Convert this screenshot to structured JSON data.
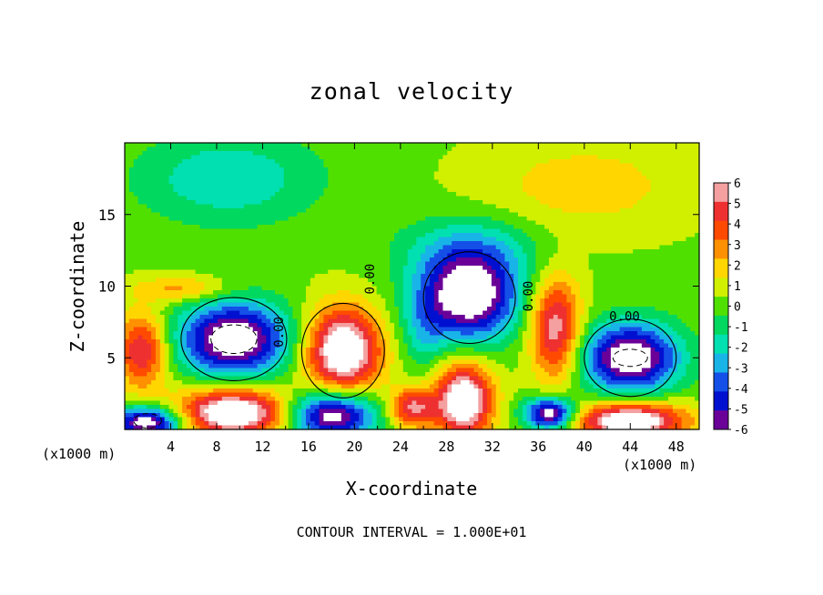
{
  "chart_data": {
    "type": "heatmap",
    "title": "zonal velocity",
    "xlabel": "X-coordinate",
    "ylabel": "Z-coordinate",
    "x_unit_label_left": "(x1000 m)",
    "x_unit_label_right": "(x1000 m)",
    "footer": "CONTOUR INTERVAL = 1.000E+01",
    "xlim": [
      0,
      50
    ],
    "ylim": [
      0,
      20
    ],
    "x_ticks": [
      4,
      8,
      12,
      16,
      20,
      24,
      28,
      32,
      36,
      40,
      44,
      48
    ],
    "y_ticks": [
      5,
      10,
      15
    ],
    "colorbar": {
      "min": -6,
      "max": 6,
      "labels": [
        "6",
        "5",
        "4",
        "3",
        "2",
        "1",
        "0",
        "-1",
        "-2",
        "-3",
        "-4",
        "-5",
        "-6"
      ],
      "colors": [
        "#f4a0a0",
        "#ee3030",
        "#ff4a00",
        "#ff9000",
        "#ffd600",
        "#d0f000",
        "#50e000",
        "#00d860",
        "#00e0b0",
        "#18b4e8",
        "#1450e8",
        "#0010d0",
        "#6a0098"
      ]
    },
    "contour_labels": [
      "0.00",
      "0.00",
      "0.00",
      "0.00"
    ],
    "background_value": 0.3,
    "features": [
      {
        "x": 9.5,
        "z": 6.3,
        "rx": 4.8,
        "rz": 2.6,
        "value": -6
      },
      {
        "x": 30,
        "z": 9.2,
        "rx": 4.2,
        "rz": 3.0,
        "value": -6
      },
      {
        "x": 44,
        "z": 5.0,
        "rx": 4.2,
        "rz": 2.4,
        "value": -6
      },
      {
        "x": 18,
        "z": 1.0,
        "rx": 3.8,
        "rz": 1.7,
        "value": -6
      },
      {
        "x": 2,
        "z": 0.5,
        "rx": 3.0,
        "rz": 1.1,
        "value": -6
      },
      {
        "x": 37,
        "z": 1.1,
        "rx": 2.2,
        "rz": 1.1,
        "value": -6
      },
      {
        "x": 19,
        "z": 5.5,
        "rx": 3.3,
        "rz": 3.0,
        "value": 6
      },
      {
        "x": 9.5,
        "z": 1.2,
        "rx": 5.0,
        "rz": 1.7,
        "value": 6
      },
      {
        "x": 29.5,
        "z": 2.0,
        "rx": 2.5,
        "rz": 2.6,
        "value": 6
      },
      {
        "x": 44,
        "z": 0.6,
        "rx": 4.8,
        "rz": 1.3,
        "value": 6
      },
      {
        "x": 1.5,
        "z": 5.5,
        "rx": 2.2,
        "rz": 2.6,
        "value": 4
      },
      {
        "x": 37.5,
        "z": 7.0,
        "rx": 2.2,
        "rz": 3.6,
        "value": 4.5
      },
      {
        "x": 25,
        "z": 1.5,
        "rx": 2.0,
        "rz": 1.4,
        "value": 4
      },
      {
        "x": 9,
        "z": 17.5,
        "rx": 8.0,
        "rz": 3.2,
        "value": -2
      },
      {
        "x": 26,
        "z": 7.0,
        "rx": 2.0,
        "rz": 3.0,
        "value": -1.5
      },
      {
        "x": 30,
        "z": 12.5,
        "rx": 6.0,
        "rz": 2.4,
        "value": -2
      },
      {
        "x": 40,
        "z": 17,
        "rx": 9.0,
        "rz": 3.2,
        "value": 1.3
      },
      {
        "x": 5,
        "z": 9.8,
        "rx": 4.0,
        "rz": 0.9,
        "value": 2
      }
    ]
  }
}
